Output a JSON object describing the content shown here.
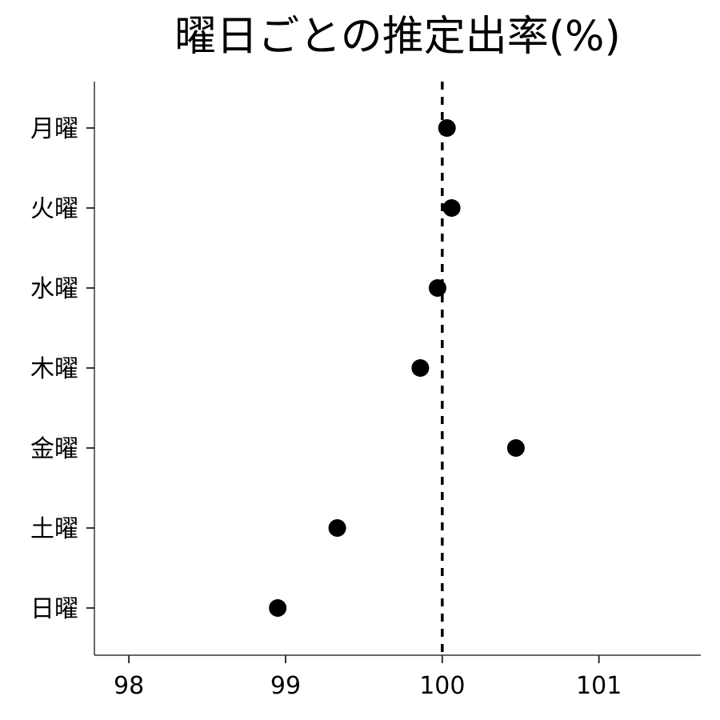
{
  "chart_data": {
    "type": "scatter",
    "title": "曜日ごとの推定出率(%)",
    "xlabel": "",
    "ylabel": "",
    "xlim": [
      97.78,
      101.65
    ],
    "xticks": [
      98,
      99,
      100,
      101
    ],
    "reference_line": {
      "x": 100,
      "style": "dashed"
    },
    "categories": [
      "月曜",
      "火曜",
      "水曜",
      "木曜",
      "金曜",
      "土曜",
      "日曜"
    ],
    "values": [
      100.03,
      100.06,
      99.97,
      99.86,
      100.47,
      99.33,
      98.95
    ],
    "grid": false,
    "legend": "none",
    "point_color": "#000000"
  }
}
